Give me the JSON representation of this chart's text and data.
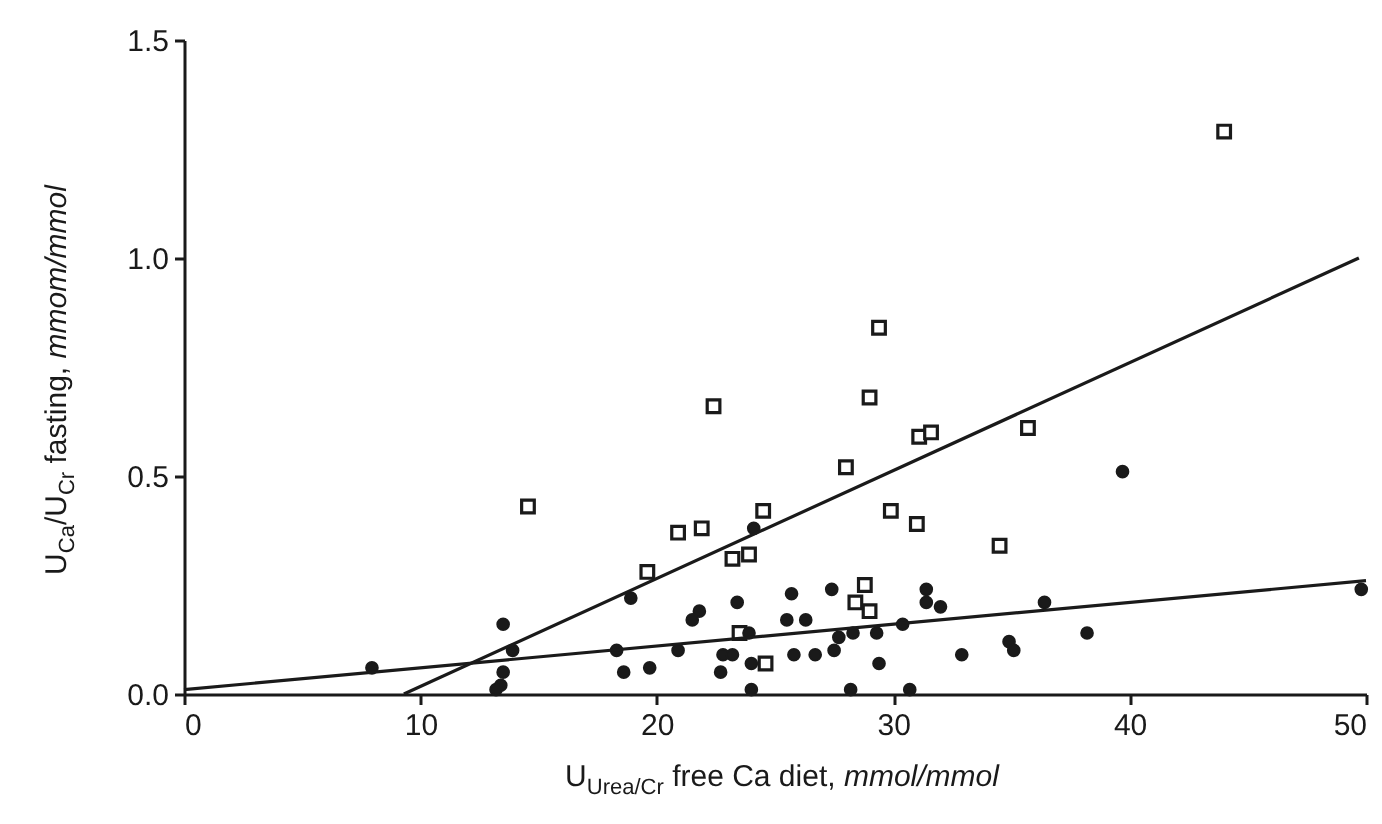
{
  "chart_data": {
    "type": "scatter",
    "xlabel": "U$_{Urea/Cr}$ free Ca diet, mmol/mmol",
    "ylabel": "U$_{Ca}$/U$_{Cr}$ fasting, mmom/mmol",
    "xlim": [
      0,
      50
    ],
    "ylim": [
      0,
      1.5
    ],
    "xticks": [
      0,
      10,
      20,
      30,
      40,
      50
    ],
    "yticks": [
      {
        "value": 0,
        "label": "0.0"
      },
      {
        "value": 0.5,
        "label": "0.5"
      },
      {
        "value": 1,
        "label": "1.0"
      },
      {
        "value": 1.5,
        "label": "1.5"
      }
    ],
    "grid": false,
    "series": [
      {
        "marker": "square",
        "color": "#1a1a1a",
        "x": [
          14.55,
          22.4,
          20.9,
          21.9,
          24.5,
          23.2,
          23.9,
          19.6,
          23.5,
          24.6,
          29.4,
          29.0,
          31.1,
          31.6,
          28.0,
          35.7,
          29.9,
          31.0,
          34.5,
          28.8,
          28.4,
          29.0,
          44.0
        ],
        "values": [
          0.43,
          0.66,
          0.37,
          0.38,
          0.42,
          0.31,
          0.32,
          0.28,
          0.14,
          0.07,
          0.84,
          0.68,
          0.59,
          0.6,
          0.52,
          0.61,
          0.42,
          0.39,
          0.34,
          0.25,
          0.21,
          0.19,
          1.29
        ]
      },
      {
        "marker": "circle",
        "color": "#1a1a1a",
        "x": [
          7.95,
          13.5,
          13.9,
          13.5,
          13.4,
          13.2,
          18.9,
          18.3,
          18.6,
          19.7,
          20.9,
          21.8,
          21.5,
          23.4,
          24.1,
          22.7,
          22.8,
          23.2,
          23.9,
          24.0,
          24.0,
          25.7,
          25.5,
          26.3,
          27.4,
          25.8,
          26.7,
          27.5,
          27.7,
          28.3,
          28.2,
          29.3,
          29.4,
          30.4,
          30.7,
          31.4,
          31.4,
          32.0,
          32.9,
          34.9,
          35.1,
          36.4,
          38.2,
          39.7,
          49.8
        ],
        "values": [
          0.06,
          0.16,
          0.1,
          0.05,
          0.02,
          0.01,
          0.22,
          0.1,
          0.05,
          0.06,
          0.1,
          0.19,
          0.17,
          0.21,
          0.38,
          0.05,
          0.09,
          0.09,
          0.14,
          0.07,
          0.01,
          0.23,
          0.17,
          0.17,
          0.24,
          0.09,
          0.09,
          0.1,
          0.13,
          0.14,
          0.01,
          0.14,
          0.07,
          0.16,
          0.01,
          0.24,
          0.21,
          0.2,
          0.09,
          0.12,
          0.1,
          0.21,
          0.14,
          0.51,
          0.24
        ]
      },
      {
        "type": "line",
        "marker": "none",
        "color": "#1a1a1a",
        "x": [
          9.3,
          49.7
        ],
        "values": [
          0,
          1.0
        ]
      },
      {
        "type": "line",
        "marker": "none",
        "color": "#1a1a1a",
        "x": [
          0,
          50
        ],
        "values": [
          0.01,
          0.26
        ]
      }
    ]
  }
}
